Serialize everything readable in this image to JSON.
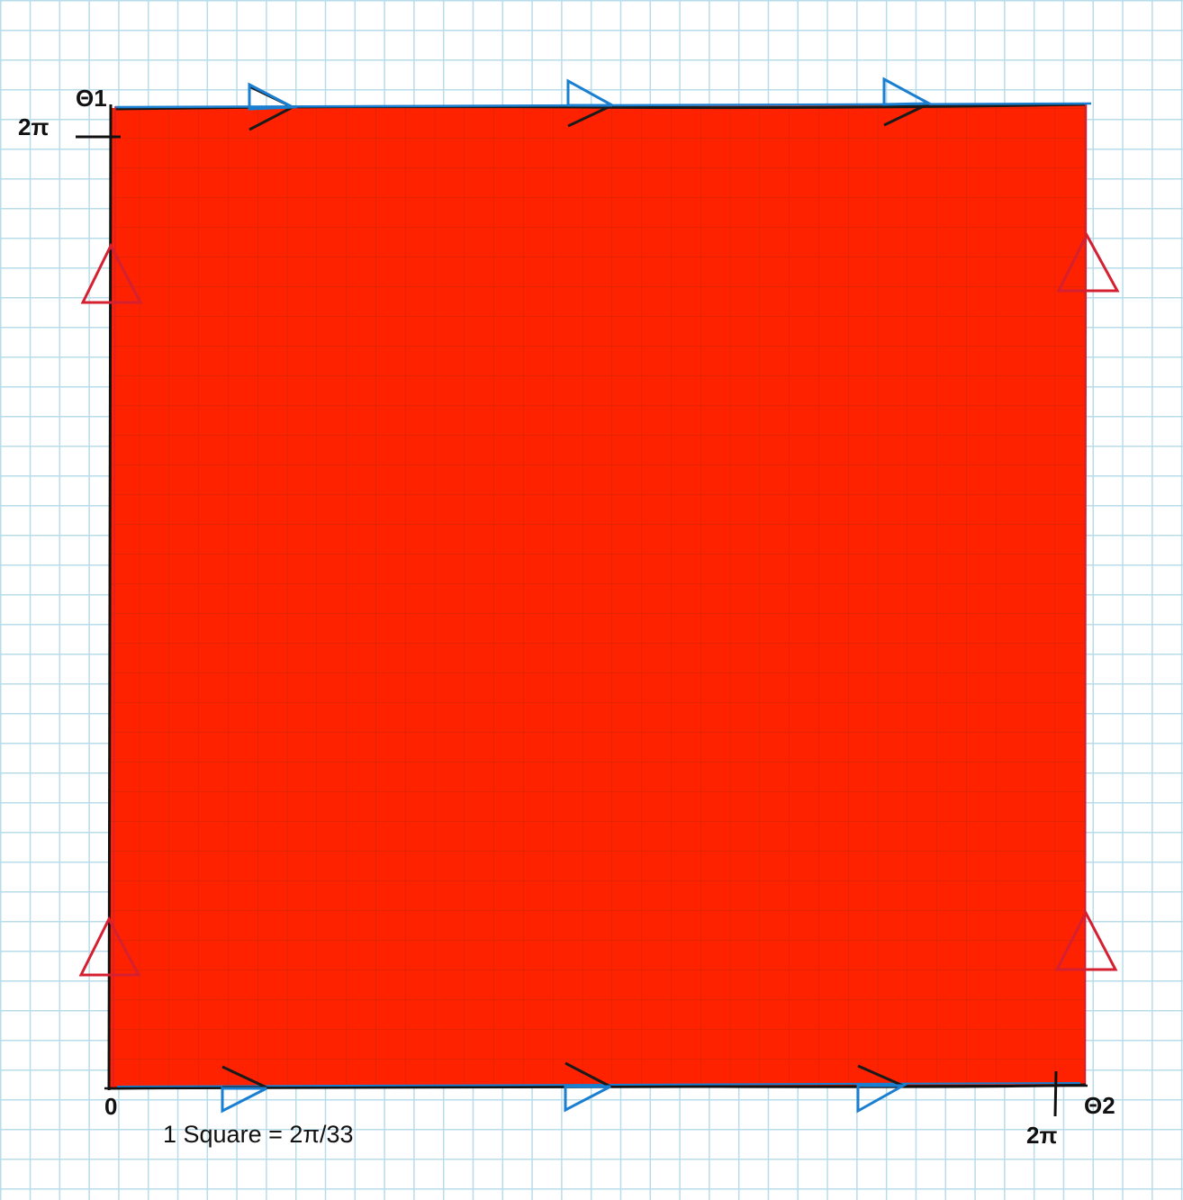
{
  "diagram": {
    "axis_vertical_label": "Θ1",
    "axis_horizontal_label": "Θ2",
    "tick_2pi_vertical": "2π",
    "tick_2pi_horizontal": "2π",
    "origin_label": "0",
    "scale_note": "1 Square = 2π/33"
  },
  "colors": {
    "region_fill": "#ff2200",
    "left_right_edge_arrows": "#d42030",
    "top_bottom_edge_arrows_blue": "#1a7fd0",
    "top_bottom_edge_arrows_black": "#111111",
    "background_grid": "#b8dcea"
  }
}
